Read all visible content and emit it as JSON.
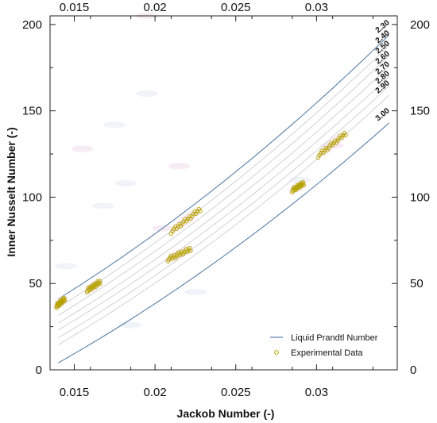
{
  "chart_data": {
    "type": "scatter",
    "xlabel": "Jackob Number (-)",
    "ylabel": "Inner Nusselt Number (-)",
    "xlim": [
      0.0135,
      0.035
    ],
    "ylim": [
      0,
      205
    ],
    "x_ticks": [
      {
        "value": 0.015,
        "label": "0.015"
      },
      {
        "value": 0.02,
        "label": "0.02"
      },
      {
        "value": 0.025,
        "label": "0.025"
      },
      {
        "value": 0.03,
        "label": "0.03"
      }
    ],
    "y_ticks": [
      {
        "value": 0,
        "label": "0"
      },
      {
        "value": 50,
        "label": "50"
      },
      {
        "value": 100,
        "label": "100"
      },
      {
        "value": 150,
        "label": "150"
      },
      {
        "value": 200,
        "label": "200"
      }
    ],
    "mirror_ticks_top_right": true,
    "grid": false,
    "legend_position": "bottom-right",
    "line_series": {
      "name": "Liquid Prandtl Number",
      "color": "#5b7fa8",
      "x": [
        0.014,
        0.0345
      ],
      "curves": [
        {
          "label": "2.30",
          "y": [
            41,
            194
          ]
        },
        {
          "label": "2.40",
          "y": [
            36,
            188
          ]
        },
        {
          "label": "2.50",
          "y": [
            31.5,
            182
          ]
        },
        {
          "label": "2.60",
          "y": [
            27,
            176
          ]
        },
        {
          "label": "2.70",
          "y": [
            23,
            170
          ]
        },
        {
          "label": "2.80",
          "y": [
            18.5,
            164.5
          ]
        },
        {
          "label": "2.90",
          "y": [
            14.5,
            159
          ]
        },
        {
          "label": "3.00",
          "y": [
            4,
            143
          ]
        }
      ]
    },
    "scatter_series": {
      "name": "Experimental Data",
      "color": "#b5a300",
      "clusters": [
        {
          "x": [
            0.0139,
            0.0144
          ],
          "y": [
            37,
            41
          ]
        },
        {
          "x": [
            0.0158,
            0.0166
          ],
          "y": [
            46,
            51
          ]
        },
        {
          "x": [
            0.021,
            0.0228
          ],
          "y": [
            80,
            93
          ]
        },
        {
          "x": [
            0.0208,
            0.0222
          ],
          "y": [
            64,
            70
          ]
        },
        {
          "x": [
            0.0285,
            0.0292
          ],
          "y": [
            104,
            108
          ]
        },
        {
          "x": [
            0.0301,
            0.0318
          ],
          "y": [
            124,
            137
          ]
        }
      ]
    }
  }
}
